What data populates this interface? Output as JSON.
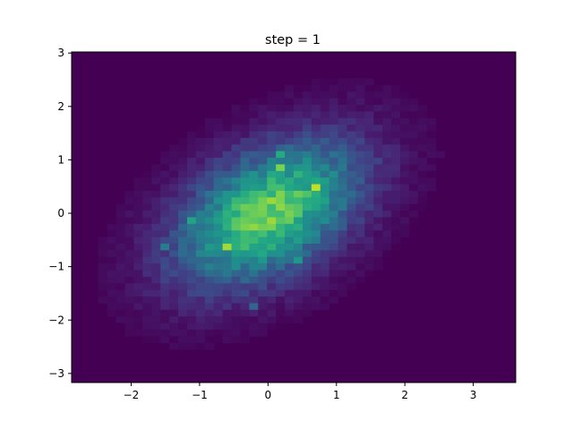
{
  "chart_data": {
    "type": "heatmap",
    "title": "step = 1",
    "xlabel": "",
    "ylabel": "",
    "xlim": [
      -2.87,
      3.62
    ],
    "ylim": [
      -3.17,
      3.02
    ],
    "x_ticks": [
      -2,
      -1,
      0,
      1,
      2,
      3
    ],
    "y_ticks": [
      -3,
      -2,
      -1,
      0,
      1,
      2,
      3
    ],
    "x_tick_labels": [
      "−2",
      "−1",
      "0",
      "1",
      "2",
      "3"
    ],
    "y_tick_labels": [
      "−3",
      "−2",
      "−1",
      "0",
      "1",
      "2",
      "3"
    ],
    "bins": [
      50,
      50
    ],
    "colormap": "viridis",
    "grid": false,
    "distribution": {
      "kind": "bivariate normal density (approx.)",
      "mean_x": 0.0,
      "mean_y": 0.0,
      "std_x": 0.9,
      "std_y": 0.9,
      "correlation": 0.45
    }
  }
}
